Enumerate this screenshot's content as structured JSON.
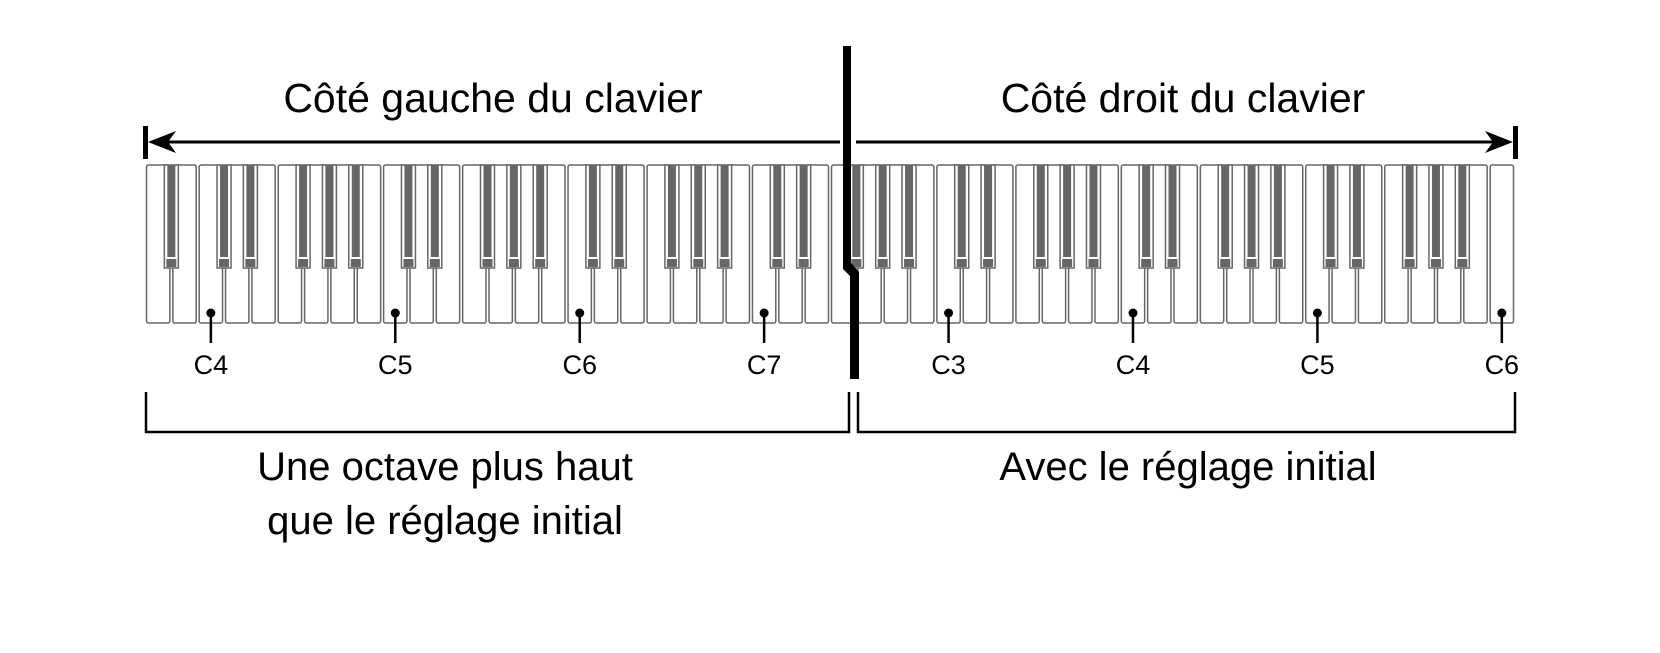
{
  "header": {
    "left_title": "Côté gauche du clavier",
    "right_title": "Côté droit du clavier"
  },
  "keyboard": {
    "white_keys": 52,
    "first_key": "A",
    "colors": {
      "white_key": "#ffffff",
      "key_outline": "#666666",
      "black_key": "#666666",
      "lines": "#000000"
    }
  },
  "markers": [
    {
      "label": "C4",
      "white_key_index": 2
    },
    {
      "label": "C5",
      "white_key_index": 9
    },
    {
      "label": "C6",
      "white_key_index": 16
    },
    {
      "label": "C7",
      "white_key_index": 23
    },
    {
      "label": "C3",
      "white_key_index": 30
    },
    {
      "label": "C4",
      "white_key_index": 37
    },
    {
      "label": "C5",
      "white_key_index": 44
    },
    {
      "label": "C6",
      "white_key_index": 51
    }
  ],
  "footer": {
    "left_line1": "Une octave plus haut",
    "left_line2": "que le réglage initial",
    "right": "Avec le réglage initial"
  }
}
